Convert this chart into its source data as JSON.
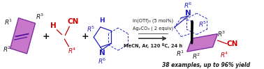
{
  "bg_color": "#ffffff",
  "purple_fill": "#c878c8",
  "purple_edge": "#8030a0",
  "blue_color": "#2222bb",
  "red_color": "#cc0000",
  "black_color": "#1a1a1a",
  "reagent_line1": "In(OTf)₃ (5 mol%)",
  "reagent_line2": "Ag₂CO₃ ( 2 equiv)",
  "reagent_line3": "MeCN, Ar, 120 ºC, 24 h",
  "bottom_text": "38 examples, up to 96% yield",
  "figsize": [
    3.78,
    0.99
  ],
  "dpi": 100
}
